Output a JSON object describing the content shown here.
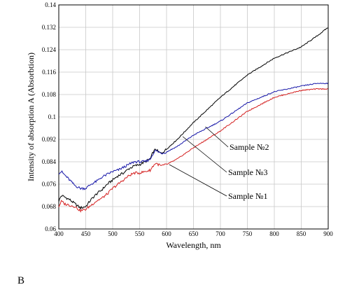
{
  "panel_label": "B",
  "chart_data": {
    "type": "line",
    "title": "",
    "xlabel": "Wavelength, nm",
    "ylabel": "Intensity of absorption A (Absorbtion)",
    "xlim": [
      400,
      900
    ],
    "ylim": [
      0.06,
      0.14
    ],
    "xticks": [
      400,
      450,
      500,
      550,
      600,
      650,
      700,
      750,
      800,
      850,
      900
    ],
    "yticks": [
      0.06,
      0.068,
      0.076,
      0.084,
      0.092,
      0.1,
      0.108,
      0.116,
      0.124,
      0.132,
      0.14
    ],
    "grid": true,
    "series": [
      {
        "name": "Sample №2",
        "color": "#000000",
        "x": [
          400,
          405,
          410,
          420,
          430,
          440,
          450,
          460,
          470,
          480,
          490,
          500,
          510,
          520,
          530,
          540,
          550,
          560,
          570,
          575,
          580,
          585,
          590,
          600,
          620,
          650,
          700,
          750,
          800,
          850,
          880,
          900
        ],
        "y": [
          0.07,
          0.072,
          0.0715,
          0.0705,
          0.069,
          0.0675,
          0.068,
          0.0705,
          0.0725,
          0.074,
          0.076,
          0.0775,
          0.079,
          0.08,
          0.0815,
          0.0825,
          0.083,
          0.084,
          0.085,
          0.0875,
          0.0885,
          0.0875,
          0.087,
          0.0885,
          0.092,
          0.098,
          0.107,
          0.115,
          0.121,
          0.125,
          0.129,
          0.132
        ]
      },
      {
        "name": "Sample №3",
        "color": "#1515a8",
        "x": [
          400,
          405,
          410,
          420,
          430,
          440,
          450,
          460,
          470,
          480,
          490,
          500,
          510,
          520,
          530,
          540,
          550,
          560,
          570,
          575,
          580,
          585,
          590,
          600,
          620,
          650,
          700,
          750,
          800,
          850,
          880,
          900
        ],
        "y": [
          0.08,
          0.0805,
          0.0795,
          0.0775,
          0.0755,
          0.0745,
          0.0745,
          0.076,
          0.077,
          0.0785,
          0.0795,
          0.0805,
          0.081,
          0.082,
          0.083,
          0.084,
          0.084,
          0.084,
          0.085,
          0.087,
          0.088,
          0.0875,
          0.087,
          0.0875,
          0.0895,
          0.0935,
          0.0985,
          0.105,
          0.109,
          0.111,
          0.112,
          0.112
        ]
      },
      {
        "name": "Sample №1",
        "color": "#d42020",
        "x": [
          400,
          405,
          410,
          420,
          430,
          440,
          450,
          460,
          470,
          480,
          490,
          500,
          510,
          520,
          530,
          540,
          550,
          560,
          570,
          575,
          580,
          585,
          590,
          600,
          620,
          650,
          700,
          750,
          800,
          850,
          880,
          900
        ],
        "y": [
          0.068,
          0.07,
          0.069,
          0.0685,
          0.068,
          0.0665,
          0.067,
          0.0685,
          0.07,
          0.071,
          0.0725,
          0.0745,
          0.076,
          0.0775,
          0.079,
          0.08,
          0.08,
          0.0805,
          0.081,
          0.0825,
          0.0835,
          0.083,
          0.0825,
          0.083,
          0.085,
          0.089,
          0.095,
          0.102,
          0.107,
          0.1095,
          0.11,
          0.11
        ]
      }
    ],
    "annotations": [
      {
        "text": "Sample №2",
        "x": 672,
        "y": 0.0965
      },
      {
        "text": "Sample №3",
        "x": 630,
        "y": 0.093
      },
      {
        "text": "Sample №1",
        "x": 605,
        "y": 0.083
      }
    ]
  }
}
